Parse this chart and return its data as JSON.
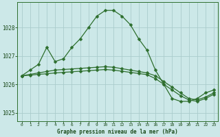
{
  "title": "Graphe pression niveau de la mer (hPa)",
  "background_color": "#cce8e8",
  "line_color": "#2d6e2d",
  "grid_color": "#aacccc",
  "ylim": [
    1024.7,
    1028.9
  ],
  "xlim": [
    -0.5,
    23.5
  ],
  "yticks": [
    1025,
    1026,
    1027,
    1028
  ],
  "xticks": [
    0,
    1,
    2,
    3,
    4,
    5,
    6,
    7,
    8,
    9,
    10,
    11,
    12,
    13,
    14,
    15,
    16,
    17,
    18,
    19,
    20,
    21,
    22,
    23
  ],
  "series1": [
    1026.3,
    1026.5,
    1026.7,
    1027.3,
    1026.8,
    1026.9,
    1027.3,
    1027.6,
    1028.0,
    1028.4,
    1028.6,
    1028.6,
    1028.4,
    1028.1,
    1027.6,
    1027.2,
    1026.5,
    1026.0,
    1025.5,
    1025.4,
    1025.4,
    1025.5,
    1025.7,
    1025.8
  ],
  "series2": [
    1026.3,
    1026.35,
    1026.4,
    1026.45,
    1026.5,
    1026.52,
    1026.54,
    1026.56,
    1026.58,
    1026.6,
    1026.62,
    1026.6,
    1026.55,
    1026.5,
    1026.45,
    1026.4,
    1026.3,
    1026.1,
    1025.9,
    1025.7,
    1025.5,
    1025.45,
    1025.55,
    1025.7
  ],
  "series3": [
    1026.3,
    1026.32,
    1026.35,
    1026.37,
    1026.4,
    1026.42,
    1026.44,
    1026.46,
    1026.48,
    1026.5,
    1026.52,
    1026.5,
    1026.46,
    1026.42,
    1026.38,
    1026.34,
    1026.2,
    1026.0,
    1025.8,
    1025.6,
    1025.45,
    1025.4,
    1025.5,
    1025.65
  ],
  "figwidth": 3.2,
  "figheight": 2.0,
  "dpi": 100
}
